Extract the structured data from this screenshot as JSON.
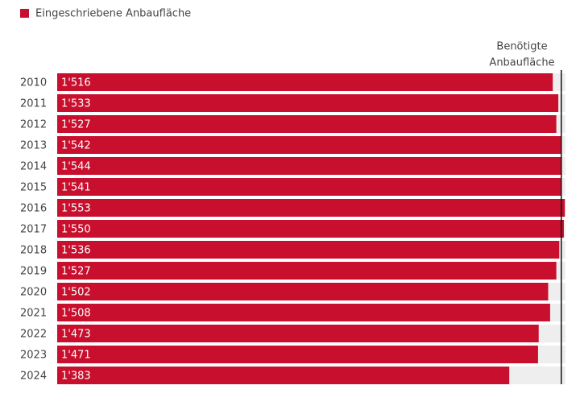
{
  "chart_data": {
    "type": "bar",
    "orientation": "horizontal",
    "legend": "Eingeschriebene Anbaufläche",
    "categories": [
      "2010",
      "2011",
      "2012",
      "2013",
      "2014",
      "2015",
      "2016",
      "2017",
      "2018",
      "2019",
      "2020",
      "2021",
      "2022",
      "2023",
      "2024"
    ],
    "values": [
      1516,
      1533,
      1527,
      1542,
      1544,
      1541,
      1553,
      1550,
      1536,
      1527,
      1502,
      1508,
      1473,
      1471,
      1383
    ],
    "value_labels": [
      "1'516",
      "1'533",
      "1'527",
      "1'542",
      "1'544",
      "1'541",
      "1'553",
      "1'550",
      "1'536",
      "1'527",
      "1'502",
      "1'508",
      "1'473",
      "1'471",
      "1'383"
    ],
    "color": "#c8102e",
    "xlim": [
      0,
      1555
    ],
    "reference": {
      "value": 1542,
      "label": [
        "Benötigte",
        "Anbaufläche"
      ]
    }
  }
}
